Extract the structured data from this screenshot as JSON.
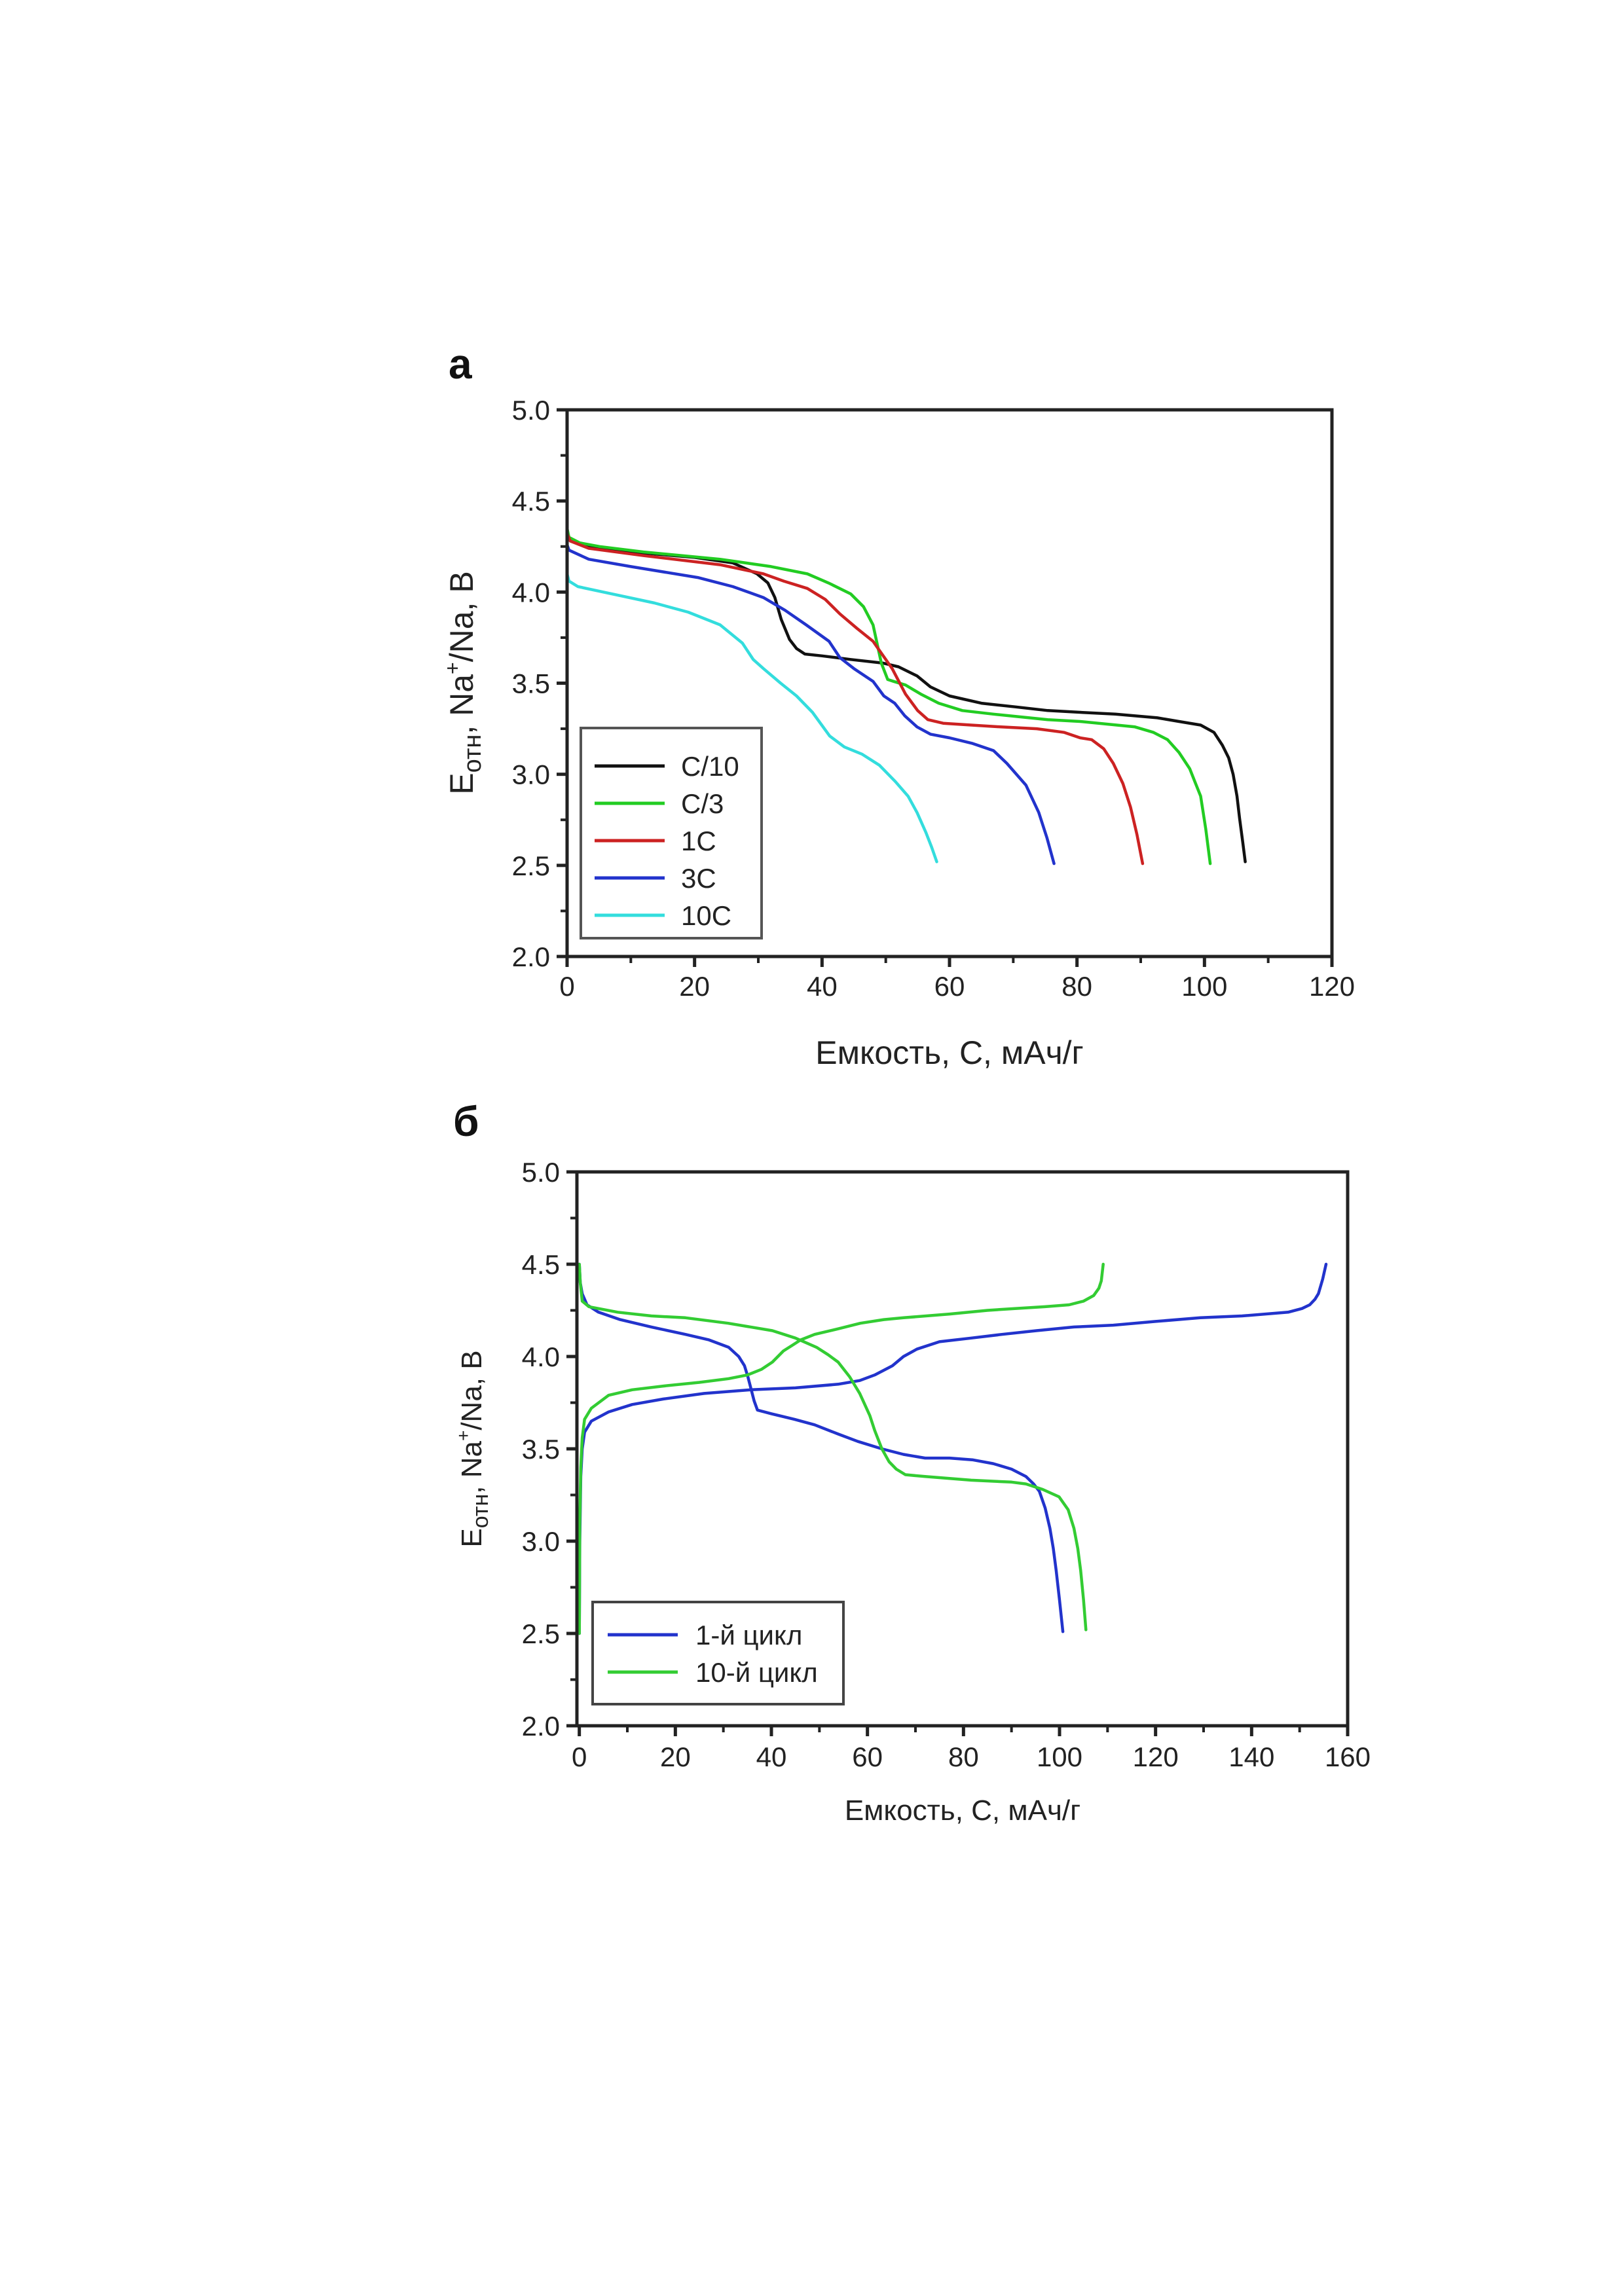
{
  "chart_data": [
    {
      "panel_label": "а",
      "type": "line",
      "title": "",
      "xlabel": "Емкость, С, мАч/г",
      "ylabel_main": "E",
      "ylabel_sub": "отн",
      "ylabel_rest": ", Na",
      "ylabel_sup": "+",
      "ylabel_tail": "/Na, В",
      "xlim": [
        0,
        120
      ],
      "ylim": [
        2.0,
        5.0
      ],
      "xticks": [
        0,
        20,
        40,
        60,
        80,
        100,
        120
      ],
      "xtick_labels": [
        "0",
        "20",
        "40",
        "60",
        "80",
        "100",
        "120"
      ],
      "xminor_step": 10,
      "yticks": [
        2.0,
        2.5,
        3.0,
        3.5,
        4.0,
        4.5,
        5.0
      ],
      "ytick_labels": [
        "2.0",
        "2.5",
        "3.0",
        "3.5",
        "4.0",
        "4.5",
        "5.0"
      ],
      "yminor_step": 0.25,
      "grid": false,
      "legend_position": "bottom-left",
      "series": [
        {
          "name": "C/10",
          "color": "#111111",
          "x": [
            0,
            0.5,
            3.4,
            10,
            20,
            26,
            29.8,
            31.5,
            32.6,
            33.6,
            34.9,
            36,
            37.3,
            40,
            44.5,
            49.6,
            52,
            54.9,
            57,
            60,
            65,
            70.3,
            75.4,
            80.5,
            86,
            92.6,
            96,
            99.4,
            101.5,
            102.8,
            103.8,
            104.5,
            105.1,
            105.5,
            106,
            106.4
          ],
          "y": [
            4.32,
            4.28,
            4.25,
            4.22,
            4.19,
            4.16,
            4.1,
            4.05,
            3.97,
            3.85,
            3.74,
            3.69,
            3.66,
            3.65,
            3.63,
            3.61,
            3.59,
            3.54,
            3.48,
            3.43,
            3.39,
            3.37,
            3.35,
            3.34,
            3.33,
            3.31,
            3.29,
            3.27,
            3.23,
            3.16,
            3.09,
            3.0,
            2.88,
            2.76,
            2.63,
            2.52
          ]
        },
        {
          "name": "C/3",
          "color": "#22cc22",
          "x": [
            0,
            0.3,
            2,
            5.1,
            12,
            24,
            32,
            37.7,
            41,
            44.5,
            46.5,
            48,
            49.3,
            50.3,
            51.2,
            53.1,
            55.5,
            58.3,
            62,
            66.9,
            75.4,
            80.5,
            89.1,
            92,
            94.2,
            96,
            97.7,
            98.6,
            99.4,
            100.2,
            100.9
          ],
          "y": [
            4.35,
            4.3,
            4.27,
            4.25,
            4.22,
            4.18,
            4.14,
            4.1,
            4.05,
            3.99,
            3.92,
            3.82,
            3.61,
            3.52,
            3.51,
            3.49,
            3.44,
            3.39,
            3.35,
            3.33,
            3.3,
            3.29,
            3.26,
            3.23,
            3.19,
            3.12,
            3.03,
            2.95,
            2.88,
            2.7,
            2.51
          ]
        },
        {
          "name": "1C",
          "color": "#cc2222",
          "x": [
            0,
            0.5,
            3.4,
            12,
            24,
            30.8,
            34,
            37.7,
            40.5,
            42.8,
            45.5,
            48,
            49,
            51,
            53.1,
            55,
            56.6,
            59,
            63.4,
            68,
            73.7,
            78,
            80.5,
            82.3,
            84.2,
            85.7,
            87.2,
            88.4,
            89.4,
            90.3
          ],
          "y": [
            4.32,
            4.28,
            4.24,
            4.2,
            4.15,
            4.1,
            4.06,
            4.02,
            3.96,
            3.88,
            3.8,
            3.73,
            3.68,
            3.58,
            3.44,
            3.35,
            3.3,
            3.28,
            3.27,
            3.26,
            3.25,
            3.23,
            3.2,
            3.19,
            3.14,
            3.06,
            2.95,
            2.82,
            2.67,
            2.51
          ]
        },
        {
          "name": "3C",
          "color": "#2233cc",
          "x": [
            0,
            0.3,
            3.4,
            10,
            20.5,
            26,
            30.8,
            34.2,
            37.5,
            41.1,
            42.8,
            45,
            48,
            49.7,
            51.4,
            53,
            54.9,
            57,
            60,
            63.5,
            66.9,
            69,
            72,
            74,
            75.3,
            76.4
          ],
          "y": [
            4.26,
            4.23,
            4.18,
            4.14,
            4.08,
            4.03,
            3.97,
            3.9,
            3.82,
            3.73,
            3.64,
            3.58,
            3.51,
            3.43,
            3.39,
            3.32,
            3.26,
            3.22,
            3.2,
            3.17,
            3.13,
            3.06,
            2.94,
            2.79,
            2.65,
            2.51
          ]
        },
        {
          "name": "10C",
          "color": "#33dddd",
          "x": [
            0,
            0.3,
            1.7,
            7,
            13.7,
            19,
            24,
            27.5,
            29.2,
            30.8,
            33.5,
            36,
            38.5,
            41.2,
            43.5,
            46.3,
            49,
            51.5,
            53.5,
            54.9,
            56.3,
            57.2,
            58
          ],
          "y": [
            4.1,
            4.06,
            4.03,
            3.99,
            3.94,
            3.89,
            3.82,
            3.72,
            3.63,
            3.58,
            3.5,
            3.43,
            3.34,
            3.21,
            3.15,
            3.11,
            3.05,
            2.96,
            2.88,
            2.79,
            2.68,
            2.6,
            2.52
          ]
        }
      ]
    },
    {
      "panel_label": "б",
      "type": "line",
      "title": "",
      "xlabel": "Емкость, С, мАч/г",
      "ylabel_main": "E",
      "ylabel_sub": "отн",
      "ylabel_rest": ", Na",
      "ylabel_sup": "+",
      "ylabel_tail": "/Na, В",
      "xlim": [
        -0.5,
        160
      ],
      "ylim": [
        2.0,
        5.0
      ],
      "xticks": [
        0,
        20,
        40,
        60,
        80,
        100,
        120,
        140,
        160
      ],
      "xtick_labels": [
        "0",
        "20",
        "40",
        "60",
        "80",
        "100",
        "120",
        "140",
        "160"
      ],
      "xminor_step": 10,
      "yticks": [
        2.0,
        2.5,
        3.0,
        3.5,
        4.0,
        4.5,
        5.0
      ],
      "ytick_labels": [
        "2.0",
        "2.5",
        "3.0",
        "3.5",
        "4.0",
        "4.5",
        "5.0"
      ],
      "yminor_step": 0.25,
      "grid": false,
      "legend_position": "bottom-left",
      "series": [
        {
          "name": "1-й цикл",
          "color": "#2233cc",
          "branch": "charge",
          "x": [
            0,
            0.1,
            0.3,
            0.6,
            1.1,
            2.5,
            6.1,
            11,
            17.5,
            26,
            35.7,
            45,
            53.9,
            58.4,
            61.5,
            65.2,
            67.5,
            70.3,
            75,
            81.6,
            88,
            95.2,
            103,
            111.2,
            120,
            129.3,
            138,
            147.6,
            150.5,
            152.1,
            153.2,
            153.9,
            154.8,
            155.5
          ],
          "y": [
            2.5,
            3.0,
            3.35,
            3.5,
            3.59,
            3.65,
            3.7,
            3.74,
            3.77,
            3.8,
            3.82,
            3.83,
            3.85,
            3.87,
            3.9,
            3.95,
            4.0,
            4.04,
            4.08,
            4.1,
            4.12,
            4.14,
            4.16,
            4.17,
            4.19,
            4.21,
            4.22,
            4.24,
            4.26,
            4.28,
            4.31,
            4.34,
            4.42,
            4.5
          ]
        },
        {
          "name": "1-й цикл",
          "color": "#2233cc",
          "branch": "discharge",
          "x": [
            0,
            0.2,
            0.6,
            1.6,
            4,
            8.5,
            15,
            22.1,
            27,
            31.1,
            33.2,
            34.4,
            35.1,
            35.7,
            36.4,
            37.1,
            40,
            44.8,
            49,
            53.9,
            58,
            63,
            67.5,
            72,
            77.1,
            82,
            86.2,
            90,
            93,
            94.6,
            95.8,
            97,
            98,
            98.7,
            99.3,
            100,
            100.7
          ],
          "y": [
            4.5,
            4.4,
            4.34,
            4.28,
            4.24,
            4.2,
            4.16,
            4.12,
            4.09,
            4.05,
            4.0,
            3.95,
            3.89,
            3.83,
            3.76,
            3.71,
            3.69,
            3.66,
            3.63,
            3.58,
            3.54,
            3.5,
            3.47,
            3.45,
            3.45,
            3.44,
            3.42,
            3.39,
            3.35,
            3.31,
            3.27,
            3.18,
            3.07,
            2.96,
            2.84,
            2.68,
            2.51
          ]
        },
        {
          "name": "10-й цикл",
          "color": "#33cc33",
          "branch": "charge",
          "x": [
            0,
            0.1,
            0.3,
            0.6,
            1.1,
            2.5,
            6.1,
            11,
            17.5,
            25,
            31.1,
            35,
            37.9,
            40.2,
            42.5,
            44.3,
            46.1,
            49,
            53.9,
            58.5,
            63.4,
            67.5,
            77.1,
            85,
            90.7,
            97,
            102,
            105,
            107.1,
            108.2,
            108.7,
            109.1
          ],
          "y": [
            2.5,
            3.1,
            3.4,
            3.56,
            3.66,
            3.72,
            3.79,
            3.82,
            3.84,
            3.86,
            3.88,
            3.9,
            3.93,
            3.97,
            4.03,
            4.06,
            4.09,
            4.12,
            4.15,
            4.18,
            4.2,
            4.21,
            4.23,
            4.25,
            4.26,
            4.27,
            4.28,
            4.3,
            4.33,
            4.37,
            4.41,
            4.5
          ]
        },
        {
          "name": "10-й цикл",
          "color": "#33cc33",
          "branch": "discharge",
          "x": [
            0,
            0.2,
            0.6,
            2,
            8,
            15,
            22.1,
            31,
            40.2,
            45,
            49.4,
            51.8,
            53.9,
            56.3,
            58.4,
            60.5,
            61.5,
            63,
            64.5,
            66,
            67.9,
            72,
            81.6,
            90,
            93,
            96.5,
            99.9,
            101.8,
            103,
            103.8,
            104.4,
            105,
            105.5
          ],
          "y": [
            4.5,
            4.4,
            4.3,
            4.27,
            4.24,
            4.22,
            4.21,
            4.18,
            4.14,
            4.1,
            4.05,
            4.01,
            3.97,
            3.89,
            3.8,
            3.68,
            3.6,
            3.5,
            3.43,
            3.39,
            3.36,
            3.35,
            3.33,
            3.32,
            3.31,
            3.28,
            3.24,
            3.17,
            3.07,
            2.96,
            2.84,
            2.68,
            2.52
          ]
        }
      ],
      "legend_entries": [
        {
          "name": "1-й цикл",
          "color": "#2233cc"
        },
        {
          "name": "10-й цикл",
          "color": "#33cc33"
        }
      ]
    }
  ]
}
